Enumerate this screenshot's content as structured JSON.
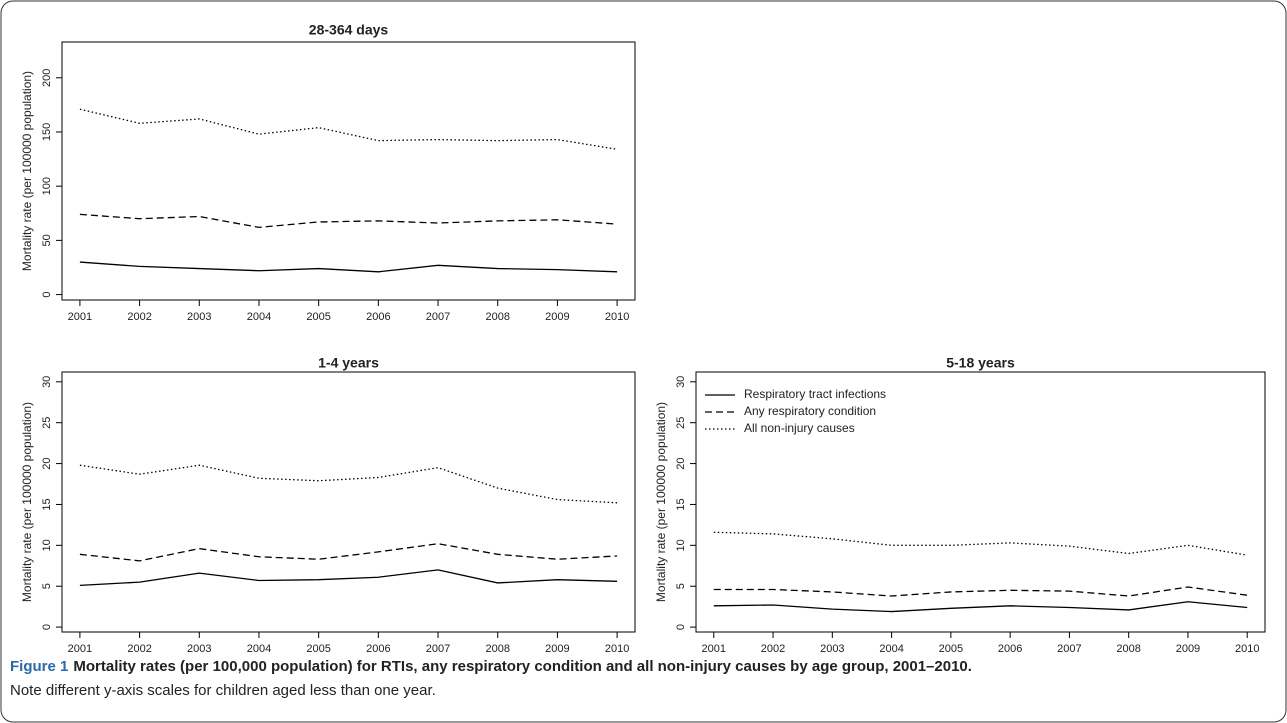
{
  "chart_data": [
    {
      "type": "line",
      "title": "28-364 days",
      "ylabel": "Mortality rate (per 100000 population)",
      "x": [
        2001,
        2002,
        2003,
        2004,
        2005,
        2006,
        2007,
        2008,
        2009,
        2010
      ],
      "xlim": [
        2000.7,
        2010.3
      ],
      "xticks": [
        2001,
        2002,
        2003,
        2004,
        2005,
        2006,
        2007,
        2008,
        2009,
        2010
      ],
      "ylim": [
        -5,
        233
      ],
      "yticks": [
        0,
        50,
        100,
        150,
        200
      ],
      "series": [
        {
          "name": "Respiratory tract infections",
          "color": "#000000",
          "dash": "solid",
          "values": [
            30,
            26,
            24,
            22,
            24,
            21,
            27,
            24,
            23,
            21
          ]
        },
        {
          "name": "Any respiratory condition",
          "color": "#000000",
          "dash": "dashed",
          "values": [
            74,
            70,
            72,
            62,
            67,
            68,
            66,
            68,
            69,
            65
          ]
        },
        {
          "name": "All non-injury causes",
          "color": "#000000",
          "dash": "dotted",
          "values": [
            171,
            158,
            162,
            148,
            154,
            142,
            143,
            142,
            143,
            134
          ]
        }
      ]
    },
    {
      "type": "line",
      "title": "1-4 years",
      "ylabel": "Mortality rate (per 100000 population)",
      "x": [
        2001,
        2002,
        2003,
        2004,
        2005,
        2006,
        2007,
        2008,
        2009,
        2010
      ],
      "xlim": [
        2000.7,
        2010.3
      ],
      "xticks": [
        2001,
        2002,
        2003,
        2004,
        2005,
        2006,
        2007,
        2008,
        2009,
        2010
      ],
      "ylim": [
        -0.6,
        31.2
      ],
      "yticks": [
        0,
        5,
        10,
        15,
        20,
        25,
        30
      ],
      "series": [
        {
          "name": "Respiratory tract infections",
          "color": "#000000",
          "dash": "solid",
          "values": [
            5.1,
            5.5,
            6.6,
            5.7,
            5.8,
            6.1,
            7.0,
            5.4,
            5.8,
            5.6
          ]
        },
        {
          "name": "Any respiratory condition",
          "color": "#000000",
          "dash": "dashed",
          "values": [
            8.9,
            8.1,
            9.6,
            8.6,
            8.3,
            9.2,
            10.2,
            8.9,
            8.3,
            8.7
          ]
        },
        {
          "name": "All non-injury causes",
          "color": "#000000",
          "dash": "dotted",
          "values": [
            19.8,
            18.7,
            19.8,
            18.2,
            17.9,
            18.3,
            19.5,
            17.0,
            15.6,
            15.2
          ]
        }
      ]
    },
    {
      "type": "line",
      "title": "5-18 years",
      "ylabel": "Mortality rate (per 100000 population)",
      "x": [
        2001,
        2002,
        2003,
        2004,
        2005,
        2006,
        2007,
        2008,
        2009,
        2010
      ],
      "xlim": [
        2000.7,
        2010.3
      ],
      "xticks": [
        2001,
        2002,
        2003,
        2004,
        2005,
        2006,
        2007,
        2008,
        2009,
        2010
      ],
      "ylim": [
        -0.6,
        31.2
      ],
      "yticks": [
        0,
        5,
        10,
        15,
        20,
        25,
        30
      ],
      "legend": "top-left",
      "series": [
        {
          "name": "Respiratory tract infections",
          "color": "#000000",
          "dash": "solid",
          "values": [
            2.6,
            2.7,
            2.2,
            1.9,
            2.3,
            2.6,
            2.4,
            2.1,
            3.1,
            2.4
          ]
        },
        {
          "name": "Any respiratory condition",
          "color": "#000000",
          "dash": "dashed",
          "values": [
            4.6,
            4.6,
            4.3,
            3.8,
            4.3,
            4.5,
            4.4,
            3.8,
            4.9,
            3.9
          ]
        },
        {
          "name": "All non-injury causes",
          "color": "#000000",
          "dash": "dotted",
          "values": [
            11.6,
            11.4,
            10.8,
            10.0,
            10.0,
            10.3,
            9.9,
            9.0,
            10.0,
            8.8
          ]
        }
      ]
    }
  ],
  "caption": {
    "label": "Figure 1",
    "title": "Mortality rates (per 100,000 population) for RTIs, any respiratory condition and all non-injury causes by age group, 2001–2010.",
    "note": "Note different y-axis scales for children aged less than one year."
  }
}
